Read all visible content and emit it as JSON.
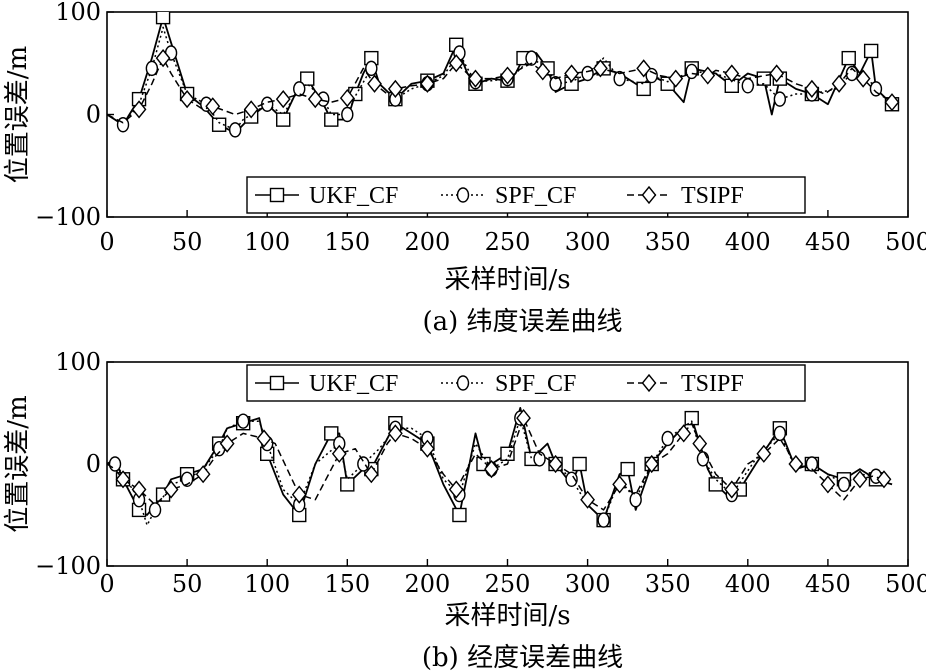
{
  "chart_data": [
    {
      "type": "line",
      "caption": "(a) 纬度误差曲线",
      "xlabel": "采样时间/s",
      "ylabel": "位置误差/m",
      "xlim": [
        0,
        500
      ],
      "ylim": [
        -100,
        100
      ],
      "xticks": [
        0,
        50,
        100,
        150,
        200,
        250,
        300,
        350,
        400,
        450,
        500
      ],
      "yticks": [
        -100,
        0,
        100
      ],
      "legend_position": "bottom-right",
      "series": [
        {
          "name": "UKF_CF",
          "style": "solid",
          "marker": "square",
          "x": [
            0,
            10,
            20,
            28,
            35,
            40,
            50,
            60,
            70,
            80,
            90,
            100,
            110,
            120,
            125,
            135,
            140,
            150,
            155,
            160,
            165,
            170,
            180,
            190,
            200,
            210,
            218,
            225,
            230,
            240,
            250,
            255,
            260,
            268,
            275,
            280,
            290,
            300,
            310,
            320,
            335,
            340,
            350,
            360,
            365,
            380,
            390,
            400,
            410,
            415,
            420,
            430,
            440,
            450,
            463,
            470,
            477,
            480,
            490
          ],
          "y": [
            0,
            -10,
            15,
            55,
            95,
            70,
            20,
            8,
            -10,
            -18,
            -2,
            10,
            -5,
            28,
            35,
            10,
            -5,
            -5,
            20,
            40,
            55,
            30,
            15,
            30,
            33,
            40,
            68,
            40,
            30,
            35,
            33,
            40,
            55,
            60,
            45,
            22,
            30,
            35,
            45,
            40,
            25,
            38,
            30,
            12,
            45,
            40,
            28,
            40,
            35,
            0,
            35,
            25,
            20,
            10,
            55,
            40,
            62,
            25,
            10
          ]
        },
        {
          "name": "SPF_CF",
          "style": "dotted",
          "marker": "circle",
          "x": [
            0,
            10,
            20,
            28,
            35,
            40,
            50,
            62,
            70,
            80,
            85,
            100,
            110,
            120,
            125,
            135,
            140,
            150,
            155,
            165,
            170,
            180,
            190,
            200,
            210,
            220,
            225,
            230,
            240,
            250,
            255,
            265,
            275,
            280,
            290,
            300,
            310,
            320,
            335,
            340,
            350,
            365,
            380,
            400,
            410,
            420,
            430,
            440,
            455,
            465,
            475,
            480,
            490
          ],
          "y": [
            0,
            -10,
            10,
            45,
            85,
            60,
            20,
            10,
            -8,
            -15,
            -5,
            10,
            0,
            25,
            30,
            15,
            0,
            0,
            18,
            45,
            30,
            15,
            25,
            30,
            38,
            60,
            45,
            32,
            33,
            35,
            40,
            55,
            45,
            30,
            32,
            40,
            55,
            35,
            30,
            38,
            32,
            42,
            40,
            28,
            30,
            15,
            20,
            20,
            25,
            40,
            35,
            25,
            10
          ]
        },
        {
          "name": "TSIPF",
          "style": "dashed",
          "marker": "diamond",
          "x": [
            0,
            10,
            20,
            28,
            35,
            40,
            50,
            60,
            66,
            80,
            90,
            100,
            110,
            120,
            130,
            140,
            150,
            160,
            167,
            175,
            180,
            190,
            200,
            210,
            218,
            225,
            230,
            240,
            250,
            265,
            272,
            280,
            290,
            300,
            308,
            320,
            335,
            345,
            355,
            365,
            375,
            380,
            390,
            400,
            418,
            430,
            440,
            448,
            457,
            465,
            472,
            480,
            490
          ],
          "y": [
            0,
            -8,
            5,
            30,
            55,
            40,
            15,
            5,
            8,
            0,
            5,
            12,
            15,
            20,
            15,
            12,
            16,
            45,
            30,
            20,
            25,
            28,
            30,
            35,
            50,
            40,
            35,
            35,
            38,
            50,
            42,
            35,
            40,
            42,
            45,
            40,
            45,
            38,
            35,
            40,
            38,
            43,
            40,
            35,
            40,
            30,
            25,
            20,
            30,
            45,
            35,
            22,
            12
          ]
        }
      ]
    },
    {
      "type": "line",
      "caption": "(b) 经度误差曲线",
      "xlabel": "采样时间/s",
      "ylabel": "位置误差/m",
      "xlim": [
        0,
        500
      ],
      "ylim": [
        -100,
        100
      ],
      "xticks": [
        0,
        50,
        100,
        150,
        200,
        250,
        300,
        350,
        400,
        450,
        500
      ],
      "yticks": [
        -100,
        0,
        100
      ],
      "legend_position": "top-right",
      "series": [
        {
          "name": "UKF_CF",
          "style": "solid",
          "marker": "square",
          "x": [
            0,
            5,
            10,
            15,
            20,
            25,
            35,
            40,
            50,
            60,
            70,
            75,
            85,
            95,
            100,
            110,
            120,
            130,
            140,
            145,
            150,
            160,
            165,
            170,
            180,
            190,
            200,
            210,
            220,
            230,
            235,
            240,
            250,
            258,
            265,
            275,
            280,
            290,
            295,
            300,
            310,
            320,
            325,
            330,
            340,
            350,
            365,
            375,
            380,
            390,
            395,
            405,
            420,
            430,
            440,
            450,
            460,
            470,
            480,
            490
          ],
          "y": [
            0,
            5,
            -15,
            -30,
            -45,
            -50,
            -30,
            -15,
            -10,
            -5,
            20,
            35,
            40,
            45,
            10,
            -30,
            -50,
            0,
            30,
            30,
            -20,
            -5,
            -5,
            10,
            40,
            30,
            20,
            -20,
            -50,
            30,
            0,
            0,
            10,
            55,
            5,
            20,
            0,
            -20,
            0,
            -40,
            -55,
            -10,
            -5,
            -45,
            0,
            20,
            45,
            -5,
            -20,
            -35,
            -25,
            0,
            35,
            -5,
            0,
            -10,
            -15,
            -5,
            -15,
            -20
          ]
        },
        {
          "name": "SPF_CF",
          "style": "dotted",
          "marker": "circle",
          "x": [
            0,
            5,
            10,
            20,
            25,
            30,
            40,
            50,
            60,
            70,
            75,
            85,
            95,
            100,
            110,
            120,
            130,
            145,
            150,
            160,
            170,
            180,
            190,
            200,
            210,
            220,
            230,
            240,
            250,
            258,
            265,
            270,
            280,
            290,
            300,
            310,
            320,
            330,
            340,
            350,
            365,
            372,
            380,
            390,
            405,
            420,
            430,
            440,
            450,
            460,
            470,
            480,
            490
          ],
          "y": [
            0,
            0,
            -10,
            -35,
            -60,
            -45,
            -20,
            -15,
            -5,
            15,
            35,
            42,
            42,
            20,
            -25,
            -40,
            0,
            20,
            -15,
            0,
            15,
            35,
            35,
            25,
            -15,
            -30,
            20,
            -5,
            5,
            45,
            5,
            5,
            0,
            -15,
            -40,
            -55,
            -15,
            -35,
            0,
            25,
            42,
            5,
            -15,
            -30,
            5,
            30,
            -5,
            0,
            -10,
            -20,
            -10,
            -12,
            -20
          ]
        },
        {
          "name": "TSIPF",
          "style": "dashed",
          "marker": "diamond",
          "x": [
            0,
            5,
            10,
            15,
            20,
            30,
            40,
            50,
            60,
            68,
            75,
            85,
            98,
            105,
            120,
            130,
            145,
            155,
            165,
            175,
            180,
            190,
            200,
            210,
            218,
            230,
            240,
            250,
            260,
            270,
            280,
            290,
            300,
            310,
            320,
            330,
            340,
            350,
            360,
            365,
            370,
            380,
            390,
            400,
            410,
            420,
            430,
            440,
            450,
            460,
            470,
            478,
            485
          ],
          "y": [
            0,
            -5,
            -15,
            -20,
            -25,
            -40,
            -25,
            -20,
            -10,
            8,
            20,
            30,
            25,
            20,
            -30,
            -35,
            10,
            15,
            -10,
            20,
            30,
            25,
            15,
            -10,
            -25,
            10,
            -5,
            0,
            45,
            10,
            0,
            -10,
            -35,
            -45,
            -20,
            -30,
            0,
            10,
            30,
            40,
            20,
            -10,
            -25,
            0,
            10,
            25,
            0,
            -5,
            -20,
            -35,
            -15,
            -12,
            -15
          ]
        }
      ]
    }
  ]
}
